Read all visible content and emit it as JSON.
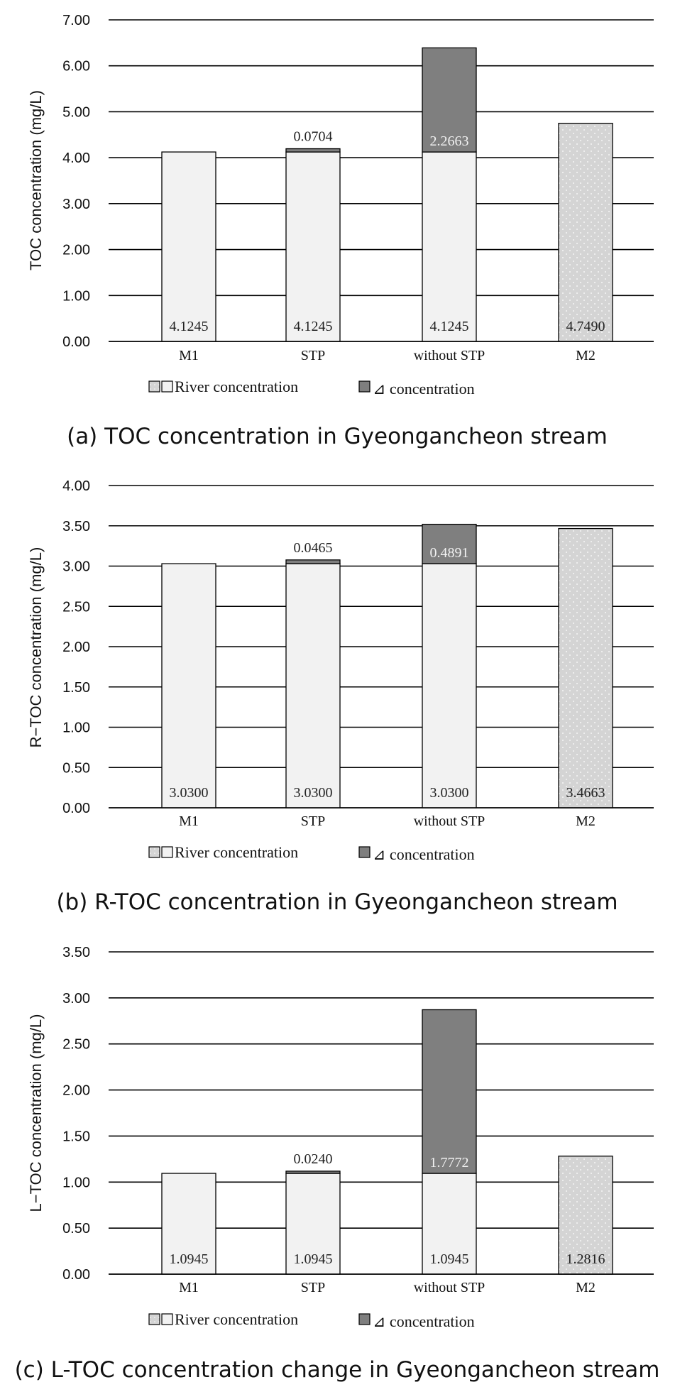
{
  "chart_data": [
    {
      "type": "bar",
      "stacked": true,
      "panel": "a",
      "caption": "(a) TOC concentration in Gyeongancheon stream",
      "ylabel": "TOC concentration (mg/L)",
      "ylim": [
        0,
        7
      ],
      "yticks": [
        "0.00",
        "1.00",
        "2.00",
        "3.00",
        "4.00",
        "5.00",
        "6.00",
        "7.00"
      ],
      "grid": true,
      "categories": [
        "M1",
        "STP",
        "without STP",
        "M2"
      ],
      "series": [
        {
          "name": "River concentration",
          "values": [
            4.1245,
            4.1245,
            4.1245,
            4.749
          ],
          "labels": [
            "4.1245",
            "4.1245",
            "4.1245",
            "4.7490"
          ]
        },
        {
          "name": "⊿ concentration",
          "values": [
            0,
            0.0704,
            2.2663,
            0
          ],
          "labels": [
            "",
            "0.0704",
            "2.2663",
            ""
          ]
        }
      ],
      "legend": [
        "River concentration",
        "⊿ concentration"
      ],
      "legend_position": "bottom"
    },
    {
      "type": "bar",
      "stacked": true,
      "panel": "b",
      "caption": "(b) R-TOC concentration in Gyeongancheon stream",
      "ylabel": "R−TOC concentration (mg/L)",
      "ylim": [
        0,
        4
      ],
      "yticks": [
        "0.00",
        "0.50",
        "1.00",
        "1.50",
        "2.00",
        "2.50",
        "3.00",
        "3.50",
        "4.00"
      ],
      "grid": true,
      "categories": [
        "M1",
        "STP",
        "without STP",
        "M2"
      ],
      "series": [
        {
          "name": "River concentration",
          "values": [
            3.03,
            3.03,
            3.03,
            3.4663
          ],
          "labels": [
            "3.0300",
            "3.0300",
            "3.0300",
            "3.4663"
          ]
        },
        {
          "name": "⊿ concentration",
          "values": [
            0,
            0.0465,
            0.4891,
            0
          ],
          "labels": [
            "",
            "0.0465",
            "0.4891",
            ""
          ]
        }
      ],
      "legend": [
        "River concentration",
        "⊿ concentration"
      ],
      "legend_position": "bottom"
    },
    {
      "type": "bar",
      "stacked": true,
      "panel": "c",
      "caption": "(c) L-TOC concentration change in Gyeongancheon stream",
      "ylabel": "L−TOC concentration (mg/L)",
      "ylim": [
        0,
        3.5
      ],
      "yticks": [
        "0.00",
        "0.50",
        "1.00",
        "1.50",
        "2.00",
        "2.50",
        "3.00",
        "3.50"
      ],
      "grid": true,
      "categories": [
        "M1",
        "STP",
        "without STP",
        "M2"
      ],
      "series": [
        {
          "name": "River concentration",
          "values": [
            1.0945,
            1.0945,
            1.0945,
            1.2816
          ],
          "labels": [
            "1.0945",
            "1.0945",
            "1.0945",
            "1.2816"
          ]
        },
        {
          "name": "⊿ concentration",
          "values": [
            0,
            0.024,
            1.7772,
            0
          ],
          "labels": [
            "",
            "0.0240",
            "1.7772",
            ""
          ]
        }
      ],
      "legend": [
        "River concentration",
        "⊿ concentration"
      ],
      "legend_position": "bottom"
    }
  ],
  "colors": {
    "river_bar": "#f2f2f2",
    "m2_bar": "#d4d4d4",
    "delta_bar": "#7f7f7f",
    "grid": "#000000"
  }
}
